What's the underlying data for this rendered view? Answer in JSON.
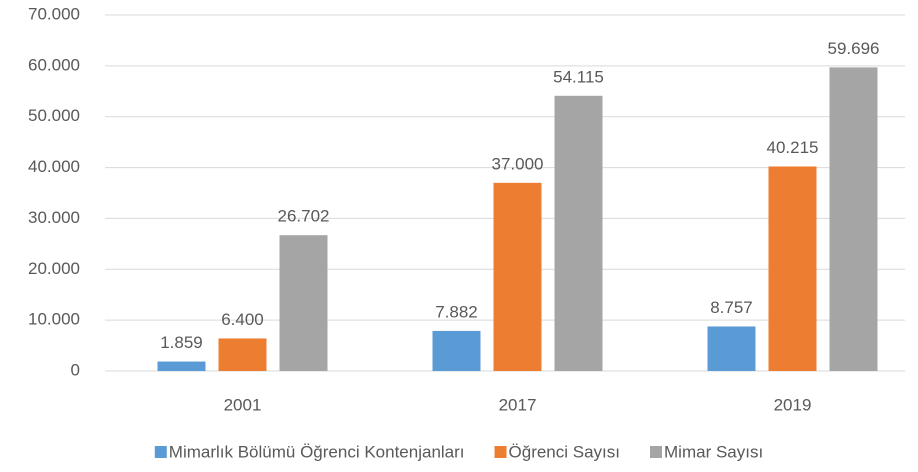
{
  "chart_data": {
    "type": "bar",
    "categories": [
      "2001",
      "2017",
      "2019"
    ],
    "series": [
      {
        "name": "Mimarlık Bölümü Öğrenci Kontenjanları",
        "color": "#5b9bd5",
        "values": [
          1859,
          7882,
          8757
        ],
        "value_labels": [
          "1.859",
          "7.882",
          "8.757"
        ]
      },
      {
        "name": "Öğrenci Sayısı",
        "color": "#ed7d31",
        "values": [
          6400,
          37000,
          40215
        ],
        "value_labels": [
          "6.400",
          "37.000",
          "40.215"
        ]
      },
      {
        "name": "Mimar Sayısı",
        "color": "#a5a5a5",
        "values": [
          26702,
          54115,
          59696
        ],
        "value_labels": [
          "26.702",
          "54.115",
          "59.696"
        ]
      }
    ],
    "ylim": [
      0,
      70000
    ],
    "yticks": [
      0,
      {
        "value": 10000,
        "label": "10.000"
      },
      {
        "value": 20000,
        "label": "20.000"
      },
      {
        "value": 30000,
        "label": "30.000"
      },
      {
        "value": 40000,
        "label": "40.000"
      },
      {
        "value": 50000,
        "label": "50.000"
      },
      {
        "value": 60000,
        "label": "60.000"
      },
      {
        "value": 70000,
        "label": "70.000"
      }
    ],
    "grid": true,
    "legend": "bottom"
  }
}
